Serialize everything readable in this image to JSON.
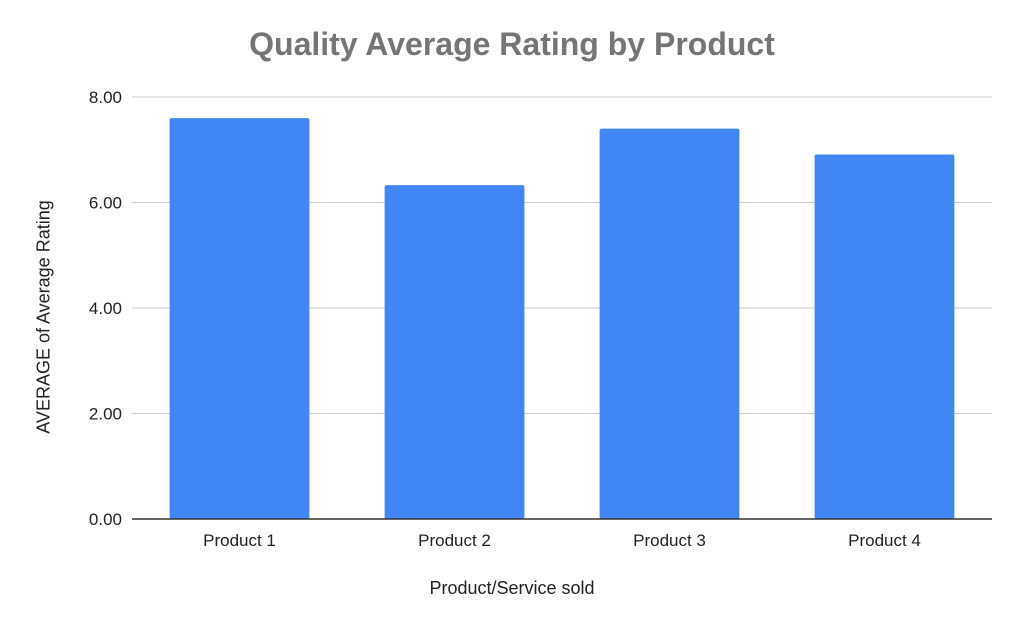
{
  "chart_data": {
    "type": "bar",
    "title": "Quality Average Rating by Product",
    "xlabel": "Product/Service sold",
    "ylabel": "AVERAGE of Average Rating",
    "categories": [
      "Product 1",
      "Product 2",
      "Product 3",
      "Product 4"
    ],
    "values": [
      7.6,
      6.33,
      7.4,
      6.91
    ],
    "ylim": [
      0,
      8
    ],
    "yticks": [
      "0.00",
      "2.00",
      "4.00",
      "6.00",
      "8.00"
    ],
    "grid": true,
    "legend": "none",
    "colors": {
      "bar": "#4285f4",
      "grid": "#cccccc",
      "axis": "#333333",
      "title": "#757575"
    }
  }
}
